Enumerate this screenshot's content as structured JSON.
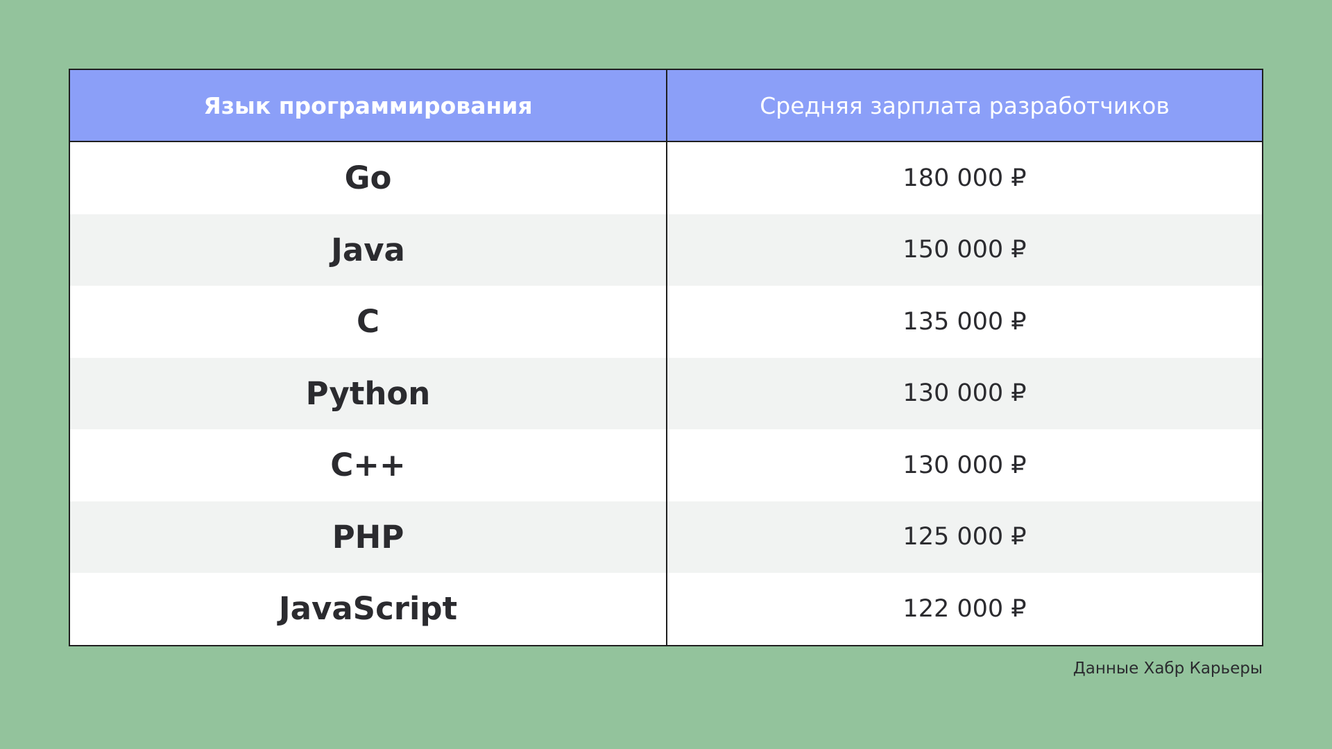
{
  "chart_data": {
    "type": "table",
    "columns": [
      "Язык программирования",
      "Средняя зарплата разработчиков"
    ],
    "rows": [
      {
        "language": "Go",
        "salary": "180 000 ₽"
      },
      {
        "language": "Java",
        "salary": "150 000 ₽"
      },
      {
        "language": "C",
        "salary": "135 000 ₽"
      },
      {
        "language": "Python",
        "salary": "130 000 ₽"
      },
      {
        "language": "C++",
        "salary": "130 000 ₽"
      },
      {
        "language": "PHP",
        "salary": "125 000 ₽"
      },
      {
        "language": "JavaScript",
        "salary": "122 000 ₽"
      }
    ],
    "values": [
      180000,
      150000,
      135000,
      130000,
      130000,
      125000,
      122000
    ]
  },
  "source": "Данные Хабр Карьеры",
  "colors": {
    "background": "#93c39c",
    "header": "#8b9ff8",
    "row_alt": "#f1f3f2",
    "text": "#2b2b2f"
  }
}
